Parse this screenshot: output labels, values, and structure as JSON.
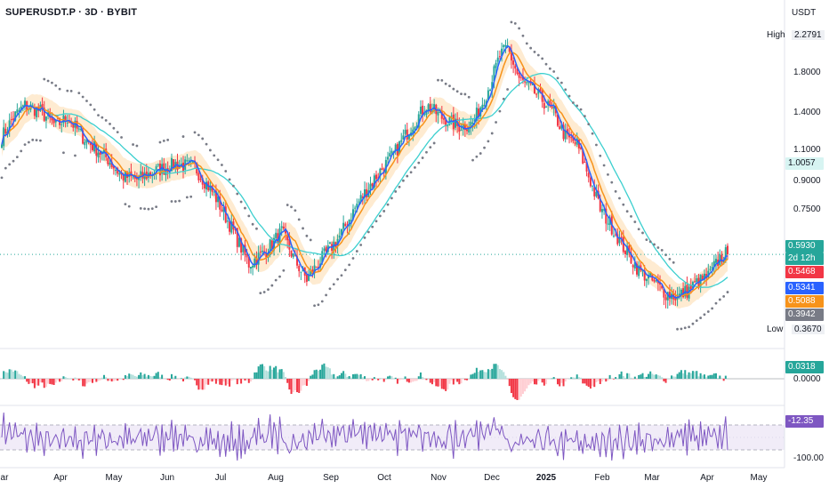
{
  "header": {
    "symbol_line": "SUPERUSDT.P · 3D · BYBIT",
    "currency": "USDT"
  },
  "colors": {
    "up": "#26a69a",
    "down": "#f23645",
    "ma_fast": "#2962ff",
    "ma_mid": "#f7931a",
    "ma_slow": "#3ccfcf",
    "sar": "#787b86",
    "rsi": "#7e57c2"
  },
  "price_axis": {
    "ticks": [
      "1.8000",
      "1.4000",
      "1.1000",
      "0.9000",
      "0.7500"
    ],
    "high_label": "High",
    "high_value": "2.2791",
    "low_label": "Low",
    "low_value": "0.3670",
    "last_price": "0.5930",
    "countdown": "2d 12h",
    "ma_fast_value": "0.5341",
    "ma_mid_value": "0.5088",
    "ma_slow_value": "1.0057",
    "close_value": "0.5468",
    "sar_value": "0.3942"
  },
  "macd_axis": {
    "value": "0.0318",
    "zero": "0.0000"
  },
  "rsi_axis": {
    "value": "-12.35",
    "bottom": "-100.00"
  },
  "x_axis": [
    "ar",
    "Apr",
    "May",
    "Jun",
    "Jul",
    "Aug",
    "Sep",
    "Oct",
    "Nov",
    "Dec",
    "2025",
    "Feb",
    "Mar",
    "Apr",
    "May"
  ],
  "chart_data": {
    "type": "candlestick",
    "title": "SUPERUSDT.P · 3D · BYBIT",
    "y_scale": "log",
    "ylim": [
      0.35,
      2.35
    ],
    "price_path": [
      [
        0,
        1.2
      ],
      [
        6,
        1.35
      ],
      [
        12,
        1.45
      ],
      [
        20,
        1.4
      ],
      [
        28,
        1.28
      ],
      [
        34,
        1.35
      ],
      [
        42,
        1.2
      ],
      [
        55,
        1.05
      ],
      [
        62,
        0.95
      ],
      [
        70,
        0.93
      ],
      [
        80,
        0.98
      ],
      [
        90,
        1.02
      ],
      [
        100,
        1.0
      ],
      [
        110,
        0.85
      ],
      [
        120,
        0.68
      ],
      [
        128,
        0.56
      ],
      [
        136,
        0.6
      ],
      [
        145,
        0.68
      ],
      [
        152,
        0.57
      ],
      [
        158,
        0.51
      ],
      [
        166,
        0.58
      ],
      [
        175,
        0.66
      ],
      [
        184,
        0.8
      ],
      [
        194,
        0.95
      ],
      [
        203,
        1.08
      ],
      [
        212,
        1.28
      ],
      [
        220,
        1.45
      ],
      [
        228,
        1.35
      ],
      [
        236,
        1.28
      ],
      [
        244,
        1.3
      ],
      [
        252,
        1.6
      ],
      [
        258,
        1.95
      ],
      [
        262,
        2.05
      ],
      [
        268,
        1.7
      ],
      [
        274,
        1.6
      ],
      [
        280,
        1.5
      ],
      [
        286,
        1.38
      ],
      [
        292,
        1.2
      ],
      [
        298,
        1.15
      ],
      [
        304,
        0.95
      ],
      [
        310,
        0.78
      ],
      [
        316,
        0.7
      ],
      [
        322,
        0.62
      ],
      [
        330,
        0.54
      ],
      [
        338,
        0.5
      ],
      [
        344,
        0.47
      ],
      [
        350,
        0.46
      ],
      [
        356,
        0.48
      ],
      [
        360,
        0.5
      ],
      [
        366,
        0.52
      ],
      [
        372,
        0.58
      ],
      [
        376,
        0.6
      ]
    ],
    "x_labels": [
      "ar",
      "Apr",
      "May",
      "Jun",
      "Jul",
      "Aug",
      "Sep",
      "Oct",
      "Nov",
      "Dec",
      "2025",
      "Feb",
      "Mar",
      "Apr",
      "May"
    ],
    "last": 0.593
  }
}
